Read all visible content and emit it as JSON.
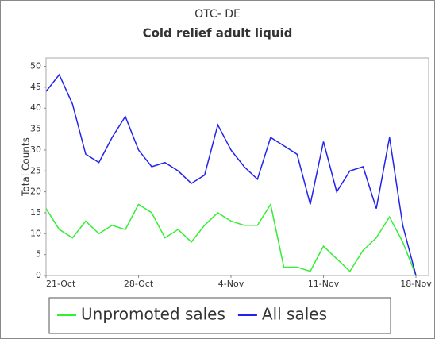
{
  "chart_data": {
    "type": "line",
    "title": "OTC- DE",
    "subtitle": "Cold relief adult liquid",
    "y_label": "Total Counts",
    "categories": [
      "21-Oct",
      null,
      null,
      null,
      null,
      null,
      null,
      "28-Oct",
      null,
      null,
      null,
      null,
      null,
      null,
      "4-Nov",
      null,
      null,
      null,
      null,
      null,
      null,
      "11-Nov",
      null,
      null,
      null,
      null,
      null,
      null,
      "18-Nov"
    ],
    "series": [
      {
        "name": "Unpromoted sales",
        "color": "#33ee33",
        "values": [
          16,
          11,
          9,
          13,
          10,
          12,
          11,
          17,
          15,
          9,
          11,
          8,
          12,
          15,
          13,
          12,
          12,
          17,
          2,
          2,
          1,
          7,
          4,
          1,
          6,
          9,
          14,
          8,
          0
        ]
      },
      {
        "name": "All sales",
        "color": "#2222ee",
        "values": [
          44,
          48,
          41,
          29,
          27,
          33,
          38,
          30,
          26,
          27,
          25,
          22,
          24,
          36,
          30,
          26,
          23,
          33,
          31,
          29,
          17,
          32,
          20,
          25,
          26,
          16,
          33,
          12,
          0
        ]
      }
    ],
    "ylim": [
      0,
      52
    ],
    "yticks": [
      0,
      5,
      10,
      15,
      20,
      25,
      30,
      35,
      40,
      45,
      50
    ],
    "grid": false,
    "legend": "bottom"
  }
}
